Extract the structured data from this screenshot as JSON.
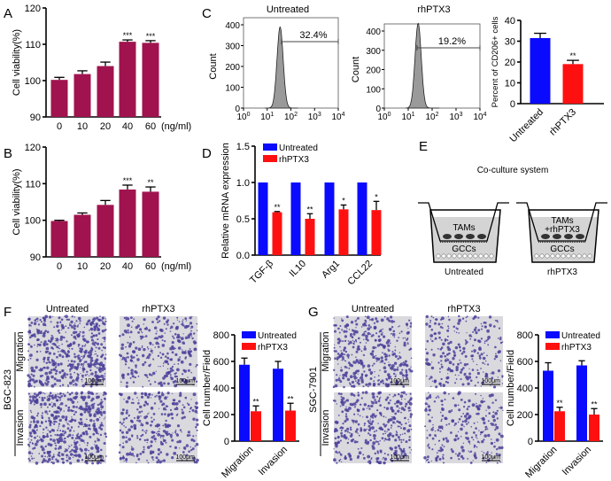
{
  "panel_labels": {
    "A": "A",
    "B": "B",
    "C": "C",
    "D": "D",
    "E": "E",
    "F": "F",
    "G": "G"
  },
  "colors": {
    "viability": "#a0134e",
    "untreated": "#0a0aff",
    "rhptx3": "#ff1010",
    "hist_fill": "#9a9a9a",
    "well_fill": "#d4d4d4",
    "micro_bg": "#d9d9de",
    "micro_dot": "#4a3f9a"
  },
  "chart_data": [
    {
      "id": "A",
      "type": "bar",
      "title": "",
      "xlabel": "",
      "ylabel": "Cell viability(%)",
      "xunit": "(ng/ml)",
      "ylim": [
        90,
        120
      ],
      "yticks": [
        90,
        100,
        110,
        120
      ],
      "categories": [
        "0",
        "10",
        "20",
        "40",
        "60"
      ],
      "series": [
        {
          "name": "Cell viability",
          "values": [
            100.2,
            101.8,
            104.0,
            110.7,
            110.4
          ],
          "errors": [
            0.7,
            0.9,
            1.1,
            0.5,
            0.6
          ],
          "significance": [
            "",
            "",
            "",
            "***",
            "***"
          ]
        }
      ]
    },
    {
      "id": "B",
      "type": "bar",
      "title": "",
      "xlabel": "",
      "ylabel": "Cell viability(%)",
      "xunit": "(ng/ml)",
      "ylim": [
        90,
        120
      ],
      "yticks": [
        90,
        100,
        110,
        120
      ],
      "categories": [
        "0",
        "10",
        "20",
        "40",
        "60"
      ],
      "series": [
        {
          "name": "Cell viability",
          "values": [
            99.8,
            101.5,
            104.2,
            108.4,
            107.8
          ],
          "errors": [
            0.2,
            0.5,
            1.2,
            1.2,
            1.3
          ],
          "significance": [
            "",
            "",
            "",
            "***",
            "**"
          ]
        }
      ]
    },
    {
      "id": "C1",
      "type": "histogram",
      "title": "Untreated",
      "ylabel": "Count",
      "ylim": [
        0,
        400
      ],
      "yticks": [
        0,
        100,
        200,
        300,
        400
      ],
      "xscale": "log",
      "xtick_base": "10",
      "xtick_exponents": [
        "0",
        "1",
        "2",
        "3",
        "4"
      ],
      "peak_fluorescence": 35,
      "peak_count": 390,
      "gate_label": "32.4%"
    },
    {
      "id": "C2",
      "type": "histogram",
      "title": "rhPTX3",
      "ylabel": "Count",
      "ylim": [
        0,
        400
      ],
      "yticks": [
        0,
        100,
        200,
        300,
        400
      ],
      "xscale": "log",
      "xtick_base": "10",
      "xtick_exponents": [
        "0",
        "1",
        "2",
        "3",
        "4"
      ],
      "peak_fluorescence": 26,
      "peak_count": 440,
      "gate_label": "19.2%"
    },
    {
      "id": "C3",
      "type": "bar",
      "title": "",
      "ylabel": "Percent of CD206+ cells",
      "ylim": [
        0,
        40
      ],
      "yticks": [
        0,
        10,
        20,
        30,
        40
      ],
      "categories": [
        "Untreated",
        "rhPTX3"
      ],
      "series": [
        {
          "name": "CD206+",
          "values": [
            31.5,
            19.0
          ],
          "errors": [
            2.3,
            1.8
          ],
          "significance": [
            "",
            "**"
          ]
        }
      ]
    },
    {
      "id": "D",
      "type": "bar",
      "title": "",
      "ylabel": "Relative mRNA expression",
      "ylim": [
        0,
        1.5
      ],
      "yticks": [
        "0.0",
        "0.5",
        "1.0",
        "1.5"
      ],
      "categories": [
        "TGF-β",
        "IL10",
        "Arg1",
        "CCL22"
      ],
      "legend_position": "top-left",
      "series": [
        {
          "name": "Untreated",
          "values": [
            1,
            1,
            1,
            1
          ],
          "errors": [
            0,
            0,
            0,
            0
          ],
          "significance": [
            "",
            "",
            "",
            ""
          ]
        },
        {
          "name": "rhPTX3",
          "values": [
            0.59,
            0.5,
            0.63,
            0.62
          ],
          "errors": [
            0.01,
            0.07,
            0.06,
            0.12
          ],
          "significance": [
            "**",
            "**",
            "*",
            "*"
          ]
        }
      ]
    },
    {
      "id": "F",
      "type": "bar",
      "title": "",
      "ylabel": "Cell number/Field",
      "ylim": [
        0,
        800
      ],
      "yticks": [
        0,
        200,
        400,
        600,
        800
      ],
      "categories": [
        "Migration",
        "Invasion"
      ],
      "legend_position": "top-right",
      "series": [
        {
          "name": "Untreated",
          "values": [
            575,
            545
          ],
          "errors": [
            50,
            55
          ],
          "significance": [
            "",
            ""
          ]
        },
        {
          "name": "rhPTX3",
          "values": [
            225,
            230
          ],
          "errors": [
            40,
            55
          ],
          "significance": [
            "**",
            "**"
          ]
        }
      ]
    },
    {
      "id": "G",
      "type": "bar",
      "title": "",
      "ylabel": "Cell number/Field",
      "ylim": [
        0,
        800
      ],
      "yticks": [
        0,
        200,
        400,
        600,
        800
      ],
      "categories": [
        "Migration",
        "Invasion"
      ],
      "legend_position": "top-right",
      "series": [
        {
          "name": "Untreated",
          "values": [
            530,
            570
          ],
          "errors": [
            60,
            35
          ],
          "significance": [
            "",
            ""
          ]
        },
        {
          "name": "rhPTX3",
          "values": [
            225,
            200
          ],
          "errors": [
            30,
            45
          ],
          "significance": [
            "**",
            "**"
          ]
        }
      ]
    }
  ],
  "diagram_E": {
    "title": "Co-culture system",
    "left": {
      "upper": "TAMs",
      "upper2": "",
      "lower": "GCCs",
      "caption": "Untreated"
    },
    "right": {
      "upper": "TAMs",
      "upper2": "+rhPTX3",
      "lower": "GCCs",
      "caption": "rhPTX3"
    }
  },
  "micrographs": {
    "F": {
      "cell_line": "BGC-823",
      "columns": [
        "Untreated",
        "rhPTX3"
      ],
      "rows": [
        "Migration",
        "Invasion"
      ],
      "scale_bar": "100μm"
    },
    "G": {
      "cell_line": "SGC-7901",
      "columns": [
        "Untreated",
        "rhPTX3"
      ],
      "rows": [
        "Migration",
        "Invasion"
      ],
      "scale_bar": "100μm"
    }
  }
}
